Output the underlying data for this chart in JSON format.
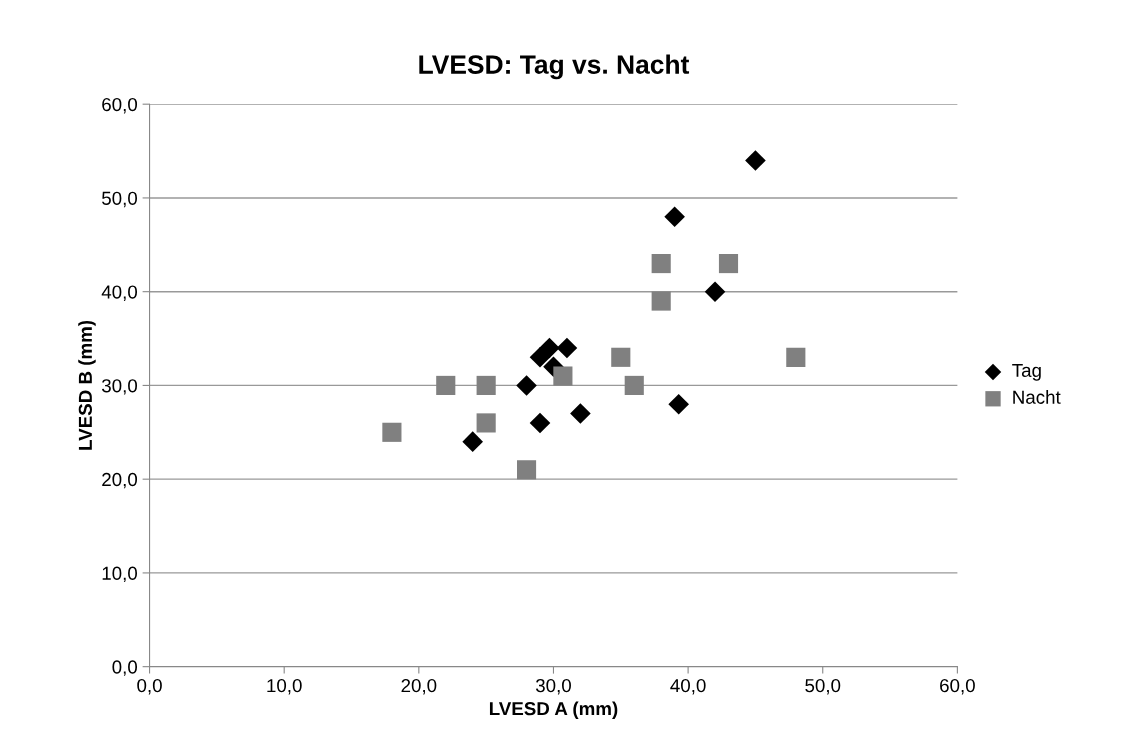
{
  "chart_data": {
    "type": "scatter",
    "title": "LVESD: Tag vs. Nacht",
    "xlabel": "LVESD A (mm)",
    "ylabel": "LVESD B (mm)",
    "series": [
      {
        "name": "Tag",
        "color": "#000000",
        "marker": "diamond",
        "x": [
          24,
          29,
          28,
          32,
          29,
          29.7,
          30,
          31,
          45,
          39,
          42,
          39.3
        ],
        "values": [
          24,
          26,
          30,
          27,
          33,
          34,
          32,
          34,
          54,
          48,
          40,
          28
        ]
      },
      {
        "name": "Nacht",
        "color": "#808080",
        "marker": "square",
        "x": [
          18,
          22,
          25,
          25,
          28,
          30.7,
          35,
          36,
          38,
          38,
          43,
          48
        ],
        "values": [
          25,
          30,
          30,
          26,
          21,
          31,
          33,
          30,
          39,
          43,
          43,
          33
        ]
      }
    ],
    "xlim": [
      0,
      60
    ],
    "ylim": [
      0,
      60
    ],
    "xticks": [
      {
        "value": 0,
        "label": "0,0"
      },
      {
        "value": 10,
        "label": "10,0"
      },
      {
        "value": 20,
        "label": "20,0"
      },
      {
        "value": 30,
        "label": "30,0"
      },
      {
        "value": 40,
        "label": "40,0"
      },
      {
        "value": 50,
        "label": "50,0"
      },
      {
        "value": 60,
        "label": "60,0"
      }
    ],
    "yticks": [
      {
        "value": 0,
        "label": "0,0"
      },
      {
        "value": 10,
        "label": "10,0"
      },
      {
        "value": 20,
        "label": "20,0"
      },
      {
        "value": 30,
        "label": "30,0"
      },
      {
        "value": 40,
        "label": "40,0"
      },
      {
        "value": 50,
        "label": "50,0"
      },
      {
        "value": 60,
        "label": "60,0"
      }
    ],
    "grid": "y",
    "legend": "right"
  }
}
